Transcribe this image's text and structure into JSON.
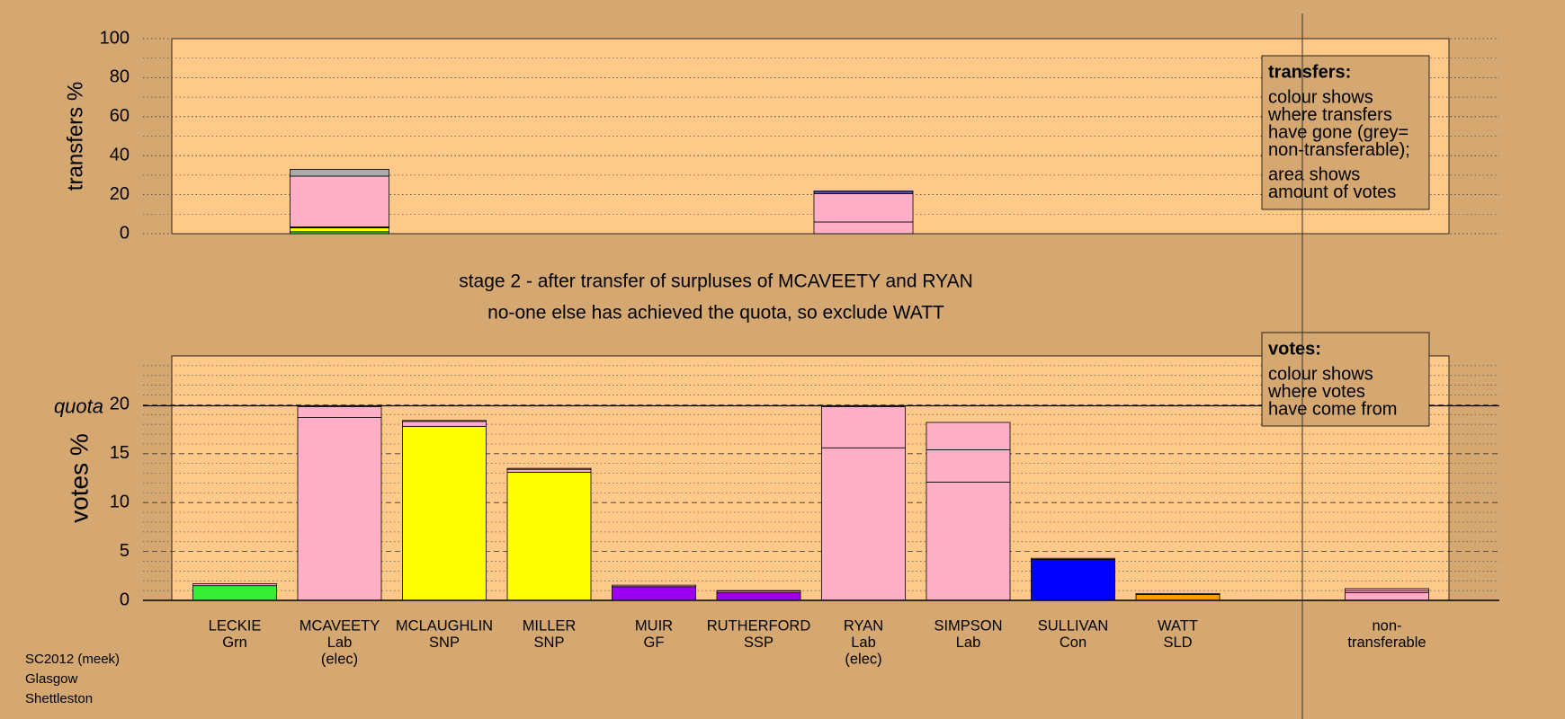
{
  "chart_data": [
    {
      "type": "stacked_bar",
      "ylabel": "transfers %",
      "ylim": [
        0,
        100
      ],
      "yticks": [
        0,
        20,
        40,
        60,
        80,
        100
      ],
      "minor_yticks": [
        10,
        30,
        50,
        70,
        90
      ],
      "grid": true,
      "series": [
        {
          "color": "#33ee33",
          "values": [
            0,
            1,
            0,
            0,
            0,
            0,
            0,
            0,
            0,
            0,
            0
          ]
        },
        {
          "color": "#ffff00",
          "values": [
            0,
            2,
            0,
            0,
            0,
            0,
            0,
            0,
            0,
            0,
            0
          ]
        },
        {
          "color": "#9900ee",
          "values": [
            0,
            0.5,
            0,
            0,
            0,
            0,
            0,
            0,
            0,
            0,
            0
          ]
        },
        {
          "color": "#ffb0c8",
          "values": [
            0,
            26,
            0,
            0,
            0,
            0,
            6,
            0,
            0,
            0,
            0
          ]
        },
        {
          "color": "#ffb0c8",
          "values": [
            0,
            0,
            0,
            0,
            0,
            0,
            14.5,
            0,
            0,
            0,
            0
          ]
        },
        {
          "color": "#8080ff",
          "values": [
            0,
            0,
            0,
            0,
            0,
            0,
            0.8,
            0,
            0,
            0,
            0
          ]
        },
        {
          "color": "#aaaaaa",
          "values": [
            0,
            3.5,
            0,
            0,
            0,
            0,
            0.6,
            0,
            0,
            0,
            0
          ]
        }
      ],
      "legend_title": "transfers:",
      "legend_lines": [
        "colour shows",
        "where transfers",
        "have gone (grey=",
        "non-transferable);",
        "area shows",
        "amount of votes"
      ]
    },
    {
      "type": "stacked_bar",
      "title_lines": [
        "stage 2 - after transfer of surpluses of MCAVEETY and RYAN",
        "no-one else has achieved the quota, so exclude WATT"
      ],
      "ylabel": "votes %",
      "ylim": [
        0,
        25
      ],
      "yticks": [
        0,
        5,
        10,
        15,
        20
      ],
      "minor_yticks": [
        1,
        2,
        3,
        4,
        6,
        7,
        8,
        9,
        11,
        12,
        13,
        14,
        16,
        17,
        18,
        19,
        21,
        22,
        23,
        24
      ],
      "grid": true,
      "quota": 19.9,
      "quota_label": "quota",
      "categories": [
        [
          "LECKIE",
          "Grn"
        ],
        [
          "MCAVEETY",
          "Lab",
          "(elec)"
        ],
        [
          "MCLAUGHLIN",
          "SNP"
        ],
        [
          "MILLER",
          "SNP"
        ],
        [
          "MUIR",
          "GF"
        ],
        [
          "RUTHERFORD",
          "SSP"
        ],
        [
          "RYAN",
          "Lab",
          "(elec)"
        ],
        [
          "SIMPSON",
          "Lab"
        ],
        [
          "SULLIVAN",
          "Con"
        ],
        [
          "WATT",
          "SLD"
        ],
        [
          "non-",
          "transferable"
        ]
      ],
      "series": [
        {
          "colors": [
            "#33ee33",
            "#ffb0c8",
            "#ffff00",
            "#ffff00",
            "#9900ee",
            "#9900ee",
            "#ffb0c8",
            "#ffb0c8",
            "#0000ff",
            "#ff9900",
            "#ffb0c8"
          ],
          "values": [
            1.5,
            18.7,
            17.8,
            13.1,
            1.4,
            0.8,
            15.6,
            12.1,
            4.2,
            0.6,
            0.8
          ]
        },
        {
          "color": "#ffb0c8",
          "values": [
            0.2,
            1.1,
            0.5,
            0.3,
            0.15,
            0.15,
            4.2,
            3.3,
            0.1,
            0.1,
            0.2
          ]
        },
        {
          "color": "#ffb0c8",
          "values": [
            0,
            0,
            0.1,
            0.1,
            0,
            0.05,
            0,
            2.8,
            0,
            0,
            0.2
          ]
        }
      ],
      "legend_title": "votes:",
      "legend_lines": [
        "colour shows",
        "where votes",
        "have come from"
      ]
    }
  ],
  "footer": [
    "SC2012 (meek)",
    "Glasgow",
    "Shettleston"
  ]
}
